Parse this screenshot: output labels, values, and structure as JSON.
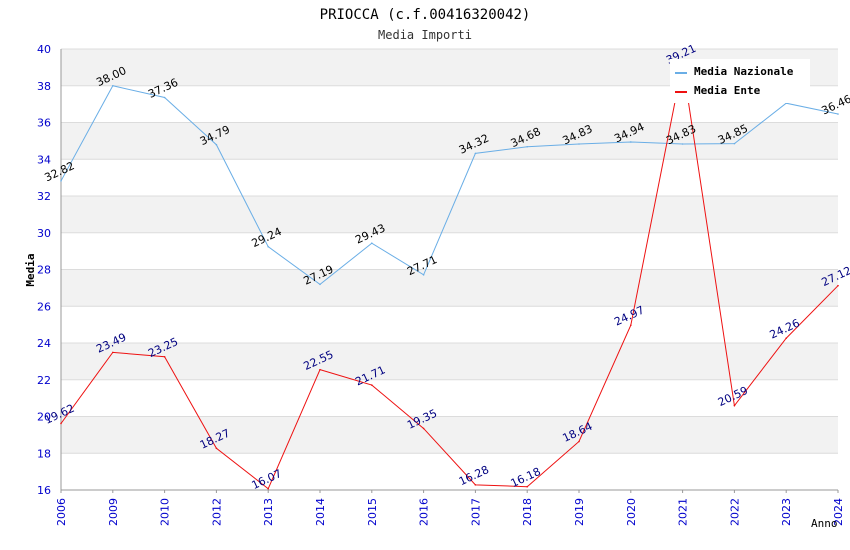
{
  "chart_data": {
    "type": "line",
    "title": "PRIOCCA (c.f.00416320042)",
    "subtitle": "Media Importi",
    "xlabel": "Anno",
    "ylabel": "Media",
    "ylim": [
      16,
      40
    ],
    "yticks": [
      16,
      18,
      20,
      22,
      24,
      26,
      28,
      30,
      32,
      34,
      36,
      38,
      40
    ],
    "categories": [
      "2006",
      "2009",
      "2010",
      "2012",
      "2013",
      "2014",
      "2015",
      "2016",
      "2017",
      "2018",
      "2019",
      "2020",
      "2021",
      "2022",
      "2023",
      "2024"
    ],
    "grid": "horizontal bands",
    "legend_position": "top-right",
    "series": [
      {
        "name": "Media Nazionale",
        "color": "#6aaee6",
        "label_color": "#000000",
        "values": [
          32.82,
          38.0,
          37.36,
          34.79,
          29.24,
          27.19,
          29.43,
          27.71,
          34.32,
          34.68,
          34.83,
          34.94,
          34.83,
          34.85,
          37.05,
          36.46
        ],
        "labels": [
          "32.82",
          "38.00",
          "37.36",
          "34.79",
          "29.24",
          "27.19",
          "29.43",
          "27.71",
          "34.32",
          "34.68",
          "34.83",
          "34.94",
          "34.83",
          "34.85",
          "",
          "36.46"
        ]
      },
      {
        "name": "Media Ente",
        "color": "#ee1111",
        "label_color": "#000080",
        "values": [
          19.62,
          23.49,
          23.25,
          18.27,
          16.07,
          22.55,
          21.71,
          19.35,
          16.28,
          16.18,
          18.64,
          24.97,
          39.21,
          20.59,
          24.26,
          27.12
        ],
        "labels": [
          "19.62",
          "23.49",
          "23.25",
          "18.27",
          "16.07",
          "22.55",
          "21.71",
          "19.35",
          "16.28",
          "16.18",
          "18.64",
          "24.97",
          "39.21",
          "20.59",
          "24.26",
          "27.12"
        ]
      }
    ]
  }
}
